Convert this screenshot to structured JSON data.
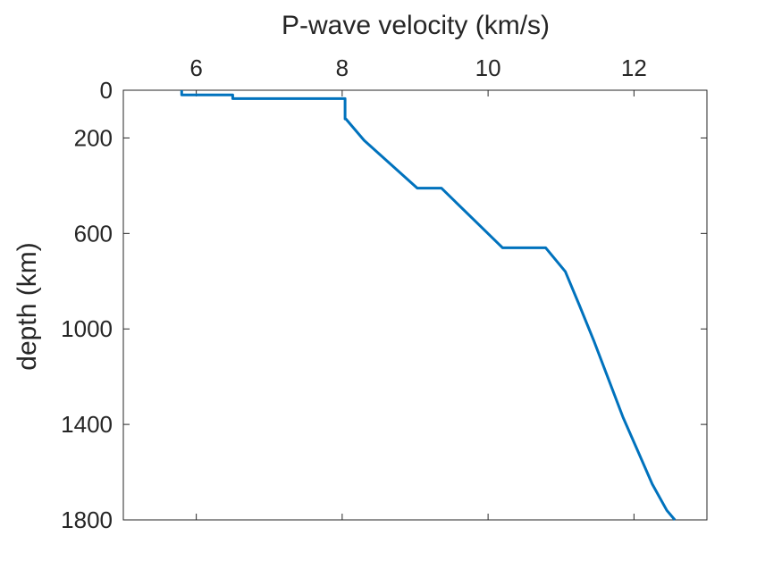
{
  "chart_data": {
    "type": "line",
    "title": "",
    "xlabel": "P-wave velocity (km/s)",
    "ylabel": "depth (km)",
    "xlim": [
      5,
      13
    ],
    "ylim": [
      0,
      1800
    ],
    "y_reversed": true,
    "x_axis_location": "top",
    "xticks": [
      6,
      8,
      10,
      12
    ],
    "xtick_labels": [
      "6",
      "8",
      "10",
      "12"
    ],
    "yticks": [
      0,
      200,
      600,
      1000,
      1400,
      1800
    ],
    "ytick_labels": [
      "0",
      "200",
      "600",
      "1000",
      "1400",
      "1800"
    ],
    "grid": false,
    "series": [
      {
        "name": "P-wave velocity profile",
        "color": "#0072BD",
        "x": [
          5.8,
          5.8,
          6.5,
          6.5,
          8.04,
          8.04,
          8.05,
          8.3,
          9.03,
          9.36,
          10.2,
          10.79,
          11.06,
          11.25,
          11.45,
          11.65,
          11.85,
          12.05,
          12.25,
          12.45,
          12.56
        ],
        "y": [
          0,
          20,
          20,
          35,
          35,
          120,
          120,
          210,
          410,
          410,
          660,
          660,
          760,
          900,
          1050,
          1210,
          1370,
          1510,
          1650,
          1760,
          1800
        ]
      }
    ]
  }
}
